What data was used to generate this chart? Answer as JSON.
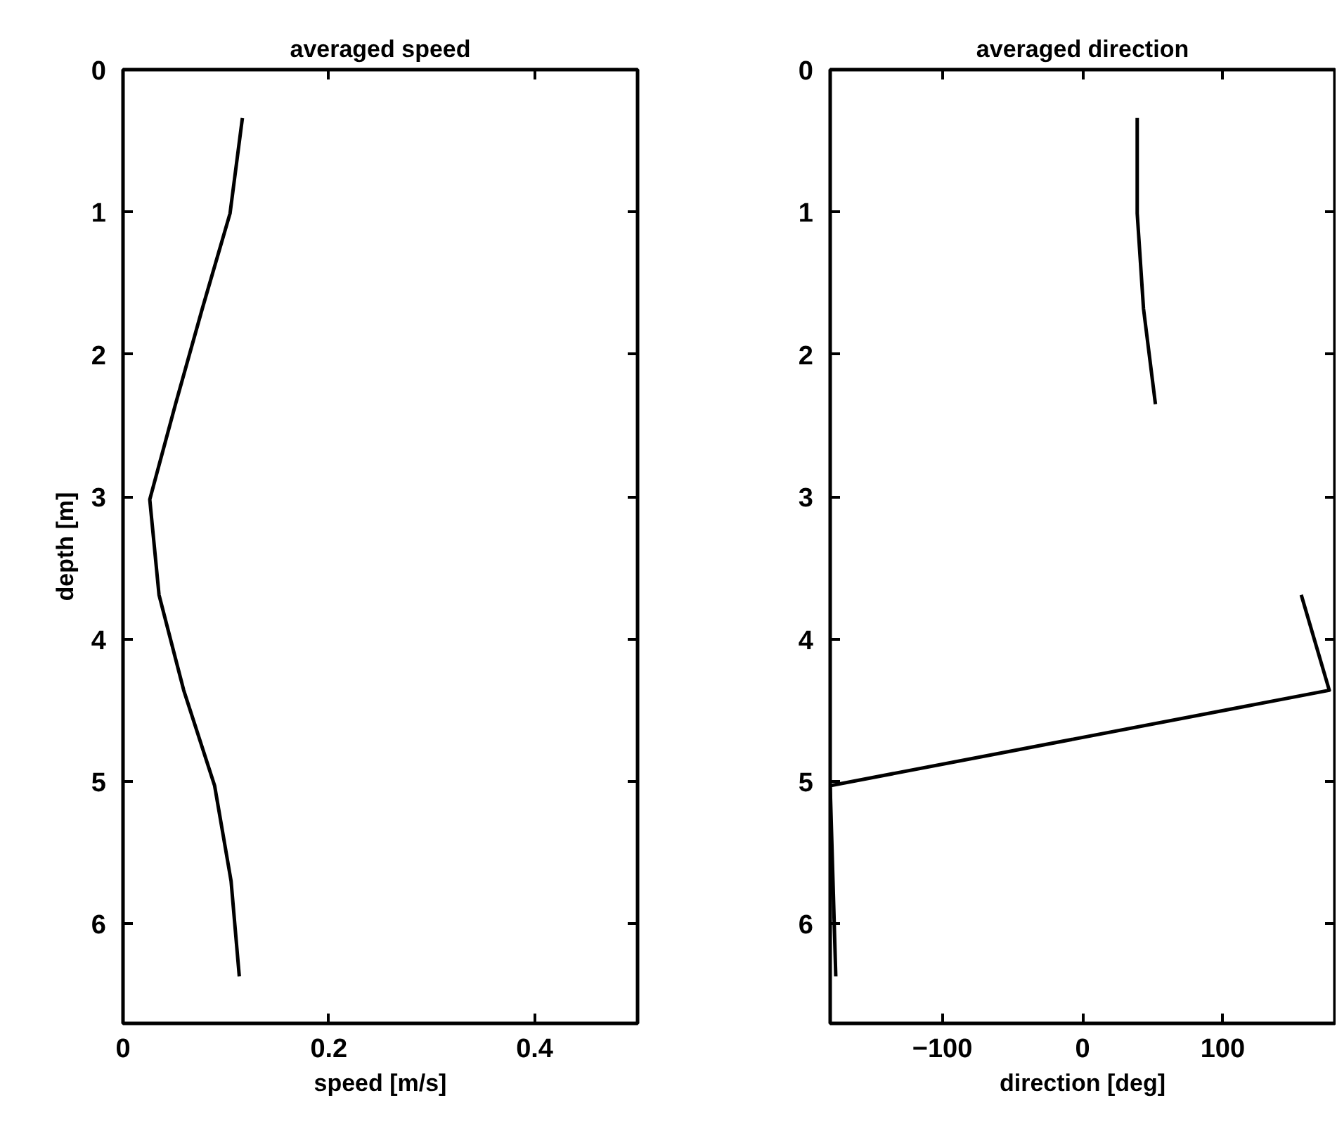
{
  "chart_data": [
    {
      "type": "line",
      "title": "averaged speed",
      "xlabel": "speed [m/s]",
      "ylabel": "depth [m]",
      "xlim": [
        0,
        0.5
      ],
      "xticks": [
        0,
        0.2,
        0.4
      ],
      "ylim": [
        6.7,
        0
      ],
      "yticks": [
        0,
        1,
        2,
        3,
        4,
        5,
        6
      ],
      "grid": false,
      "series": [
        {
          "color": "#000000",
          "x": [
            0.116,
            0.104,
            0.077,
            0.051,
            0.026,
            0.035,
            0.059,
            0.089,
            0.105,
            0.113
          ],
          "values": [
            0.34,
            1.01,
            1.68,
            2.35,
            3.02,
            3.69,
            4.36,
            5.03,
            5.7,
            6.37
          ]
        }
      ]
    },
    {
      "type": "line",
      "title": "averaged direction",
      "xlabel": "direction [deg]",
      "xlim": [
        -180,
        180
      ],
      "xticks": [
        -100,
        0,
        100
      ],
      "ylim": [
        6.7,
        0
      ],
      "yticks": [
        0,
        1,
        2,
        3,
        4,
        5,
        6
      ],
      "grid": false,
      "series": [
        {
          "color": "#000000",
          "x": [
            39,
            39,
            43.5,
            52,
            null,
            156,
            176,
            -180,
            -178,
            -176
          ],
          "values": [
            0.34,
            1.01,
            1.68,
            2.35,
            null,
            3.69,
            4.36,
            5.03,
            5.7,
            6.37
          ]
        }
      ]
    }
  ]
}
